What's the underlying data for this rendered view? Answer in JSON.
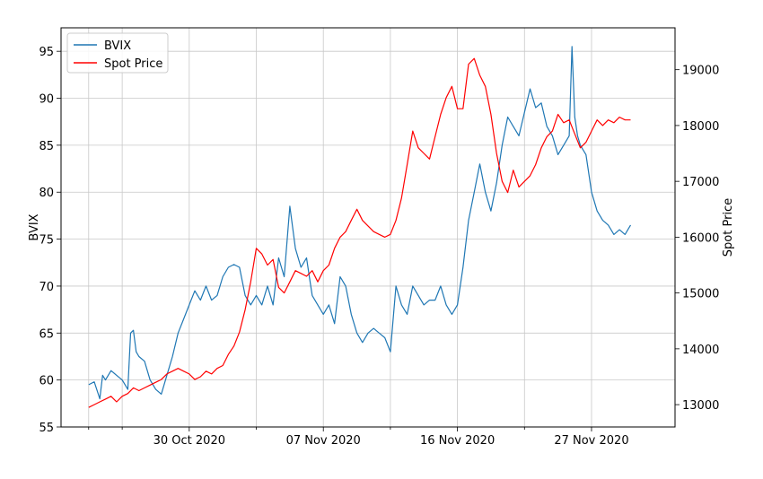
{
  "chart_data": {
    "type": "line",
    "title": "",
    "xlabel": "",
    "ylabel_left": "BVIX",
    "ylabel_right": "Spot Price",
    "x_ticks": [
      "30 Oct 2020",
      "07 Nov 2020",
      "16 Nov 2020",
      "27 Nov 2020"
    ],
    "x_tick_positions": [
      0.18,
      0.42,
      0.66,
      0.9
    ],
    "y_left_ticks": [
      55,
      60,
      65,
      70,
      75,
      80,
      85,
      90,
      95
    ],
    "y_right_ticks": [
      13000,
      14000,
      15000,
      16000,
      17000,
      18000,
      19000
    ],
    "ylim_left": [
      55,
      97.5
    ],
    "ylim_right": [
      12600,
      19750
    ],
    "grid": true,
    "legend_position": "top-left",
    "series": [
      {
        "name": "BVIX",
        "color": "#1f77b4",
        "axis": "left",
        "x": [
          0,
          0.01,
          0.02,
          0.025,
          0.03,
          0.04,
          0.05,
          0.06,
          0.07,
          0.075,
          0.08,
          0.085,
          0.09,
          0.1,
          0.11,
          0.12,
          0.13,
          0.14,
          0.15,
          0.16,
          0.17,
          0.18,
          0.19,
          0.2,
          0.21,
          0.22,
          0.23,
          0.24,
          0.25,
          0.26,
          0.27,
          0.28,
          0.29,
          0.3,
          0.31,
          0.32,
          0.33,
          0.34,
          0.35,
          0.36,
          0.37,
          0.38,
          0.385,
          0.39,
          0.395,
          0.4,
          0.41,
          0.42,
          0.43,
          0.44,
          0.45,
          0.46,
          0.47,
          0.48,
          0.49,
          0.5,
          0.51,
          0.52,
          0.53,
          0.54,
          0.55,
          0.56,
          0.57,
          0.58,
          0.59,
          0.6,
          0.61,
          0.62,
          0.63,
          0.64,
          0.65,
          0.66,
          0.67,
          0.68,
          0.69,
          0.7,
          0.71,
          0.72,
          0.73,
          0.74,
          0.75,
          0.76,
          0.77,
          0.78,
          0.79,
          0.8,
          0.81,
          0.82,
          0.83,
          0.84,
          0.85,
          0.86,
          0.865,
          0.87,
          0.875,
          0.88,
          0.89,
          0.9,
          0.91,
          0.92,
          0.93,
          0.94,
          0.95,
          0.96,
          0.97
        ],
        "values": [
          59.5,
          59.8,
          58.0,
          60.5,
          60.0,
          61.0,
          60.5,
          60.0,
          59.0,
          65.0,
          65.3,
          63.0,
          62.5,
          62.0,
          60.0,
          59.0,
          58.5,
          60.5,
          62.5,
          65.0,
          66.5,
          68.0,
          69.5,
          68.5,
          70.0,
          68.5,
          69.0,
          71.0,
          72.0,
          72.3,
          72.0,
          69.0,
          68.0,
          69.0,
          68.0,
          70.0,
          68.0,
          73.0,
          71.0,
          78.5,
          74.0,
          72.0,
          72.5,
          73.0,
          71.0,
          69.0,
          68.0,
          67.0,
          68.0,
          66.0,
          71.0,
          70.0,
          67.0,
          65.0,
          64.0,
          65.0,
          65.5,
          65.0,
          64.5,
          63.0,
          70.0,
          68.0,
          67.0,
          70.0,
          69.0,
          68.0,
          68.5,
          68.5,
          70.0,
          68.0,
          67.0,
          68.0,
          72.0,
          77.0,
          80.0,
          83.0,
          80.0,
          78.0,
          81.0,
          85.0,
          88.0,
          87.0,
          86.0,
          88.5,
          91.0,
          89.0,
          89.5,
          87.0,
          86.0,
          84.0,
          85.0,
          86.0,
          95.5,
          88.0,
          86.0,
          85.0,
          84.0,
          80.0,
          78.0,
          77.0,
          76.5,
          75.5,
          76.0,
          75.5,
          76.5
        ]
      },
      {
        "name": "Spot Price",
        "color": "#ff0000",
        "axis": "right",
        "x": [
          0,
          0.01,
          0.02,
          0.03,
          0.04,
          0.05,
          0.06,
          0.07,
          0.08,
          0.09,
          0.1,
          0.11,
          0.12,
          0.13,
          0.14,
          0.15,
          0.16,
          0.17,
          0.18,
          0.19,
          0.2,
          0.21,
          0.22,
          0.23,
          0.24,
          0.25,
          0.26,
          0.27,
          0.28,
          0.29,
          0.3,
          0.31,
          0.32,
          0.33,
          0.34,
          0.35,
          0.36,
          0.37,
          0.38,
          0.39,
          0.4,
          0.41,
          0.42,
          0.43,
          0.44,
          0.45,
          0.46,
          0.47,
          0.48,
          0.49,
          0.5,
          0.51,
          0.52,
          0.53,
          0.54,
          0.55,
          0.56,
          0.57,
          0.58,
          0.59,
          0.6,
          0.61,
          0.62,
          0.63,
          0.64,
          0.65,
          0.66,
          0.67,
          0.68,
          0.69,
          0.7,
          0.71,
          0.72,
          0.73,
          0.74,
          0.75,
          0.76,
          0.77,
          0.78,
          0.79,
          0.8,
          0.81,
          0.82,
          0.83,
          0.84,
          0.85,
          0.86,
          0.87,
          0.88,
          0.89,
          0.9,
          0.91,
          0.92,
          0.93,
          0.94,
          0.95,
          0.96,
          0.97
        ],
        "values": [
          12950,
          13000,
          13050,
          13100,
          13150,
          13050,
          13150,
          13200,
          13300,
          13250,
          13300,
          13350,
          13400,
          13450,
          13550,
          13600,
          13650,
          13600,
          13550,
          13450,
          13500,
          13600,
          13550,
          13650,
          13700,
          13900,
          14050,
          14300,
          14700,
          15200,
          15800,
          15700,
          15500,
          15600,
          15100,
          15000,
          15200,
          15400,
          15350,
          15300,
          15400,
          15200,
          15400,
          15500,
          15800,
          16000,
          16100,
          16300,
          16500,
          16300,
          16200,
          16100,
          16050,
          16000,
          16050,
          16300,
          16700,
          17300,
          17900,
          17600,
          17500,
          17400,
          17800,
          18200,
          18500,
          18700,
          18300,
          18300,
          19100,
          19200,
          18900,
          18700,
          18200,
          17500,
          17000,
          16800,
          17200,
          16900,
          17000,
          17100,
          17300,
          17600,
          17800,
          17900,
          18200,
          18050,
          18100,
          17850,
          17600,
          17700,
          17900,
          18100,
          18000,
          18100,
          18050,
          18150,
          18100,
          18100
        ]
      }
    ]
  }
}
